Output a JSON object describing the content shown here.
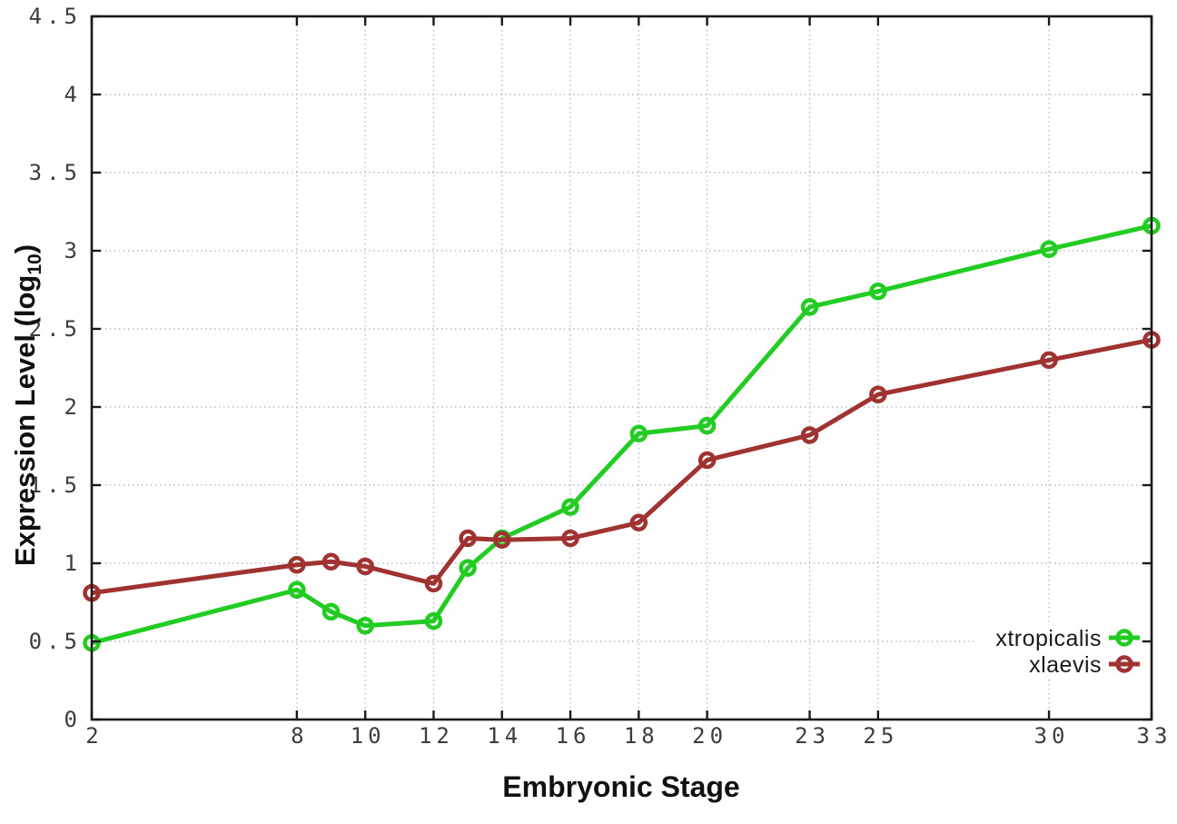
{
  "chart_data": {
    "type": "line",
    "title": "",
    "xlabel": "Embryonic Stage",
    "ylabel": {
      "text": "Expression Level (log",
      "sub": "10",
      "suffix": ")"
    },
    "xlim": [
      2,
      33
    ],
    "ylim": [
      0,
      4.5
    ],
    "grid": true,
    "grid_style": "dotted",
    "legend_position": "bottom-right",
    "x": [
      2,
      8,
      9,
      10,
      12,
      13,
      14,
      16,
      18,
      20,
      23,
      25,
      30,
      33
    ],
    "xticks": {
      "values": [
        2,
        8,
        10,
        12,
        14,
        16,
        18,
        20,
        23,
        25,
        30,
        33
      ],
      "labels": [
        "2",
        "8",
        "10",
        "12",
        "14",
        "16",
        "18",
        "20",
        "23",
        "25",
        "30",
        "33"
      ]
    },
    "yticks": {
      "values": [
        0,
        0.5,
        1,
        1.5,
        2,
        2.5,
        3,
        3.5,
        4,
        4.5
      ],
      "labels": [
        "0",
        "0.5",
        "1",
        "1.5",
        "2",
        "2.5",
        "3",
        "3.5",
        "4",
        "4.5"
      ]
    },
    "series": [
      {
        "name": "xtropicalis",
        "color": "#22cc22",
        "values": [
          0.49,
          0.83,
          0.69,
          0.6,
          0.63,
          0.97,
          1.16,
          1.36,
          1.83,
          1.88,
          2.64,
          2.74,
          3.01,
          3.16
        ]
      },
      {
        "name": "xlaevis",
        "color": "#a03232",
        "values": [
          0.81,
          0.99,
          1.01,
          0.98,
          0.87,
          1.16,
          1.15,
          1.16,
          1.26,
          1.66,
          1.82,
          2.08,
          2.3,
          2.43
        ]
      }
    ],
    "colors": {
      "background": "#ffffff",
      "border": "#1a1a1a",
      "grid": "#bbbbbb",
      "tick_label": "#3d3d3d",
      "axis_label": "#111111",
      "legend_text": "#1a1a1a"
    }
  }
}
